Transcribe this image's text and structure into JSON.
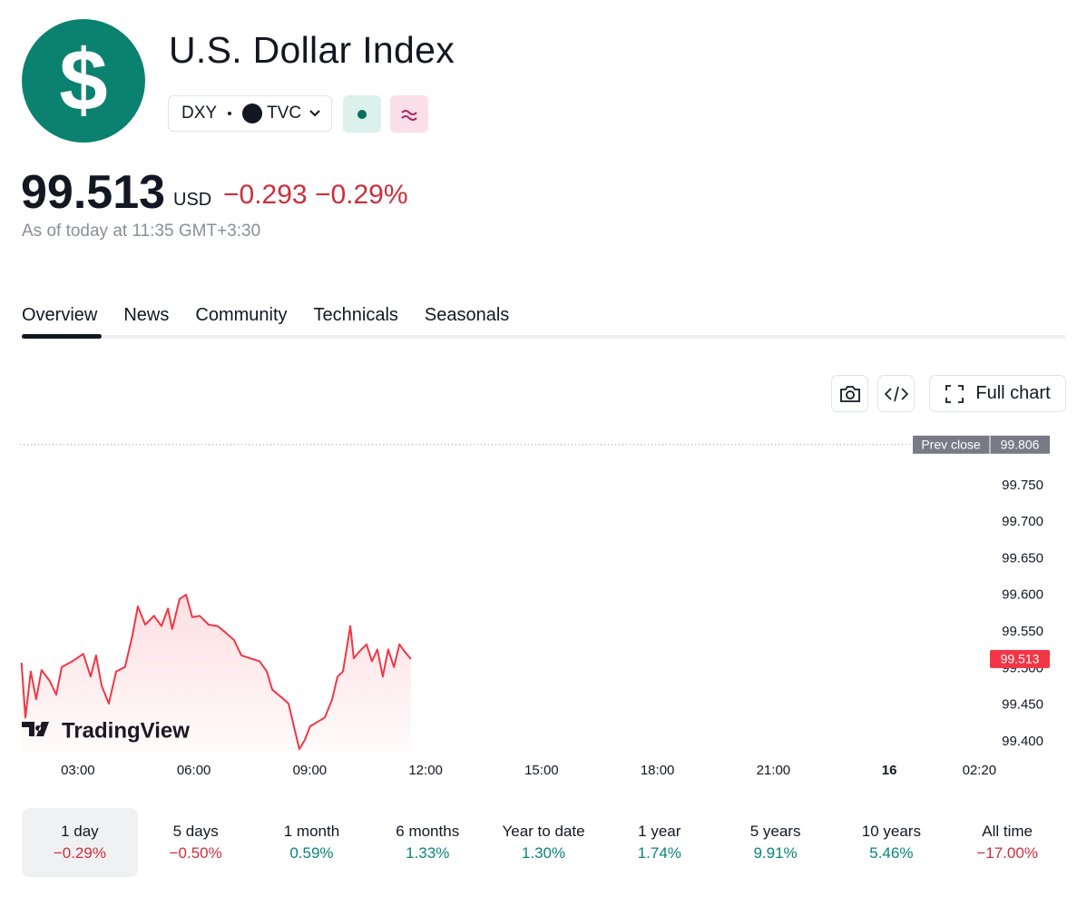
{
  "header": {
    "logo": "$",
    "title": "U.S. Dollar Index",
    "symbol": "DXY",
    "exchange": "TVC"
  },
  "quote": {
    "price": "99.513",
    "currency": "USD",
    "change": "−0.293",
    "change_percent": "−0.29%",
    "as_of": "As of today at 11:35 GMT+3:30"
  },
  "tabs": [
    "Overview",
    "News",
    "Community",
    "Technicals",
    "Seasonals"
  ],
  "toolbar": {
    "full_chart": "Full chart"
  },
  "chart_data": {
    "type": "line",
    "watermark": "TradingView",
    "x": [
      1.54,
      1.64,
      1.78,
      1.92,
      2.06,
      2.27,
      2.44,
      2.58,
      2.86,
      3.14,
      3.33,
      3.47,
      3.61,
      3.8,
      3.99,
      4.22,
      4.41,
      4.55,
      4.74,
      4.97,
      5.16,
      5.33,
      5.44,
      5.63,
      5.8,
      5.96,
      6.15,
      6.38,
      6.62,
      6.85,
      7.04,
      7.23,
      7.46,
      7.7,
      7.89,
      8.03,
      8.26,
      8.45,
      8.59,
      8.73,
      8.87,
      9.01,
      9.2,
      9.39,
      9.58,
      9.72,
      9.86,
      10.05,
      10.14,
      10.28,
      10.47,
      10.61,
      10.75,
      10.89,
      11.03,
      11.18,
      11.32,
      11.46,
      11.62
    ],
    "series": [
      {
        "color": "#f23645",
        "values": [
          99.508,
          99.433,
          99.496,
          99.458,
          99.498,
          99.483,
          99.464,
          99.502,
          99.51,
          99.52,
          99.489,
          99.518,
          99.477,
          99.452,
          99.496,
          99.502,
          99.545,
          99.585,
          99.56,
          99.572,
          99.558,
          99.582,
          99.554,
          99.595,
          99.601,
          99.57,
          99.572,
          99.56,
          99.558,
          99.548,
          99.539,
          99.518,
          99.514,
          99.51,
          99.496,
          99.471,
          99.461,
          99.452,
          99.421,
          99.39,
          99.402,
          99.421,
          99.427,
          99.433,
          99.458,
          99.489,
          99.496,
          99.558,
          99.514,
          99.523,
          99.533,
          99.51,
          99.526,
          99.489,
          99.526,
          99.502,
          99.533,
          99.523,
          99.513
        ]
      }
    ],
    "xlim": [
      1.5,
      26.58
    ],
    "xticks": [
      {
        "value": 3,
        "label": "03:00"
      },
      {
        "value": 6,
        "label": "06:00"
      },
      {
        "value": 9,
        "label": "09:00"
      },
      {
        "value": 12,
        "label": "12:00"
      },
      {
        "value": 15,
        "label": "15:00"
      },
      {
        "value": 18,
        "label": "18:00"
      },
      {
        "value": 21,
        "label": "21:00"
      },
      {
        "value": 24,
        "label": "16",
        "bold": true
      },
      {
        "value": 26.33,
        "label": "02:20"
      }
    ],
    "ylim": [
      99.385,
      99.82
    ],
    "yticks": [
      {
        "value": 99.4,
        "label": "99.400"
      },
      {
        "value": 99.45,
        "label": "99.450"
      },
      {
        "value": 99.5,
        "label": "99.500"
      },
      {
        "value": 99.55,
        "label": "99.550"
      },
      {
        "value": 99.6,
        "label": "99.600"
      },
      {
        "value": 99.65,
        "label": "99.650"
      },
      {
        "value": 99.7,
        "label": "99.700"
      },
      {
        "value": 99.75,
        "label": "99.750"
      }
    ],
    "prev_close_label": "Prev close",
    "prev_close": 99.806
  },
  "periods": [
    {
      "label": "1 day",
      "change": "−0.29%",
      "color": "#cc2f3c"
    },
    {
      "label": "5 days",
      "change": "−0.50%",
      "color": "#cc2f3c"
    },
    {
      "label": "1 month",
      "change": "0.59%",
      "color": "#08857a"
    },
    {
      "label": "6 months",
      "change": "1.33%",
      "color": "#08857a"
    },
    {
      "label": "Year to date",
      "change": "1.30%",
      "color": "#08857a"
    },
    {
      "label": "1 year",
      "change": "1.74%",
      "color": "#08857a"
    },
    {
      "label": "5 years",
      "change": "9.91%",
      "color": "#08857a"
    },
    {
      "label": "10 years",
      "change": "5.46%",
      "color": "#08857a"
    },
    {
      "label": "All time",
      "change": "−17.00%",
      "color": "#cc2f3c"
    }
  ]
}
